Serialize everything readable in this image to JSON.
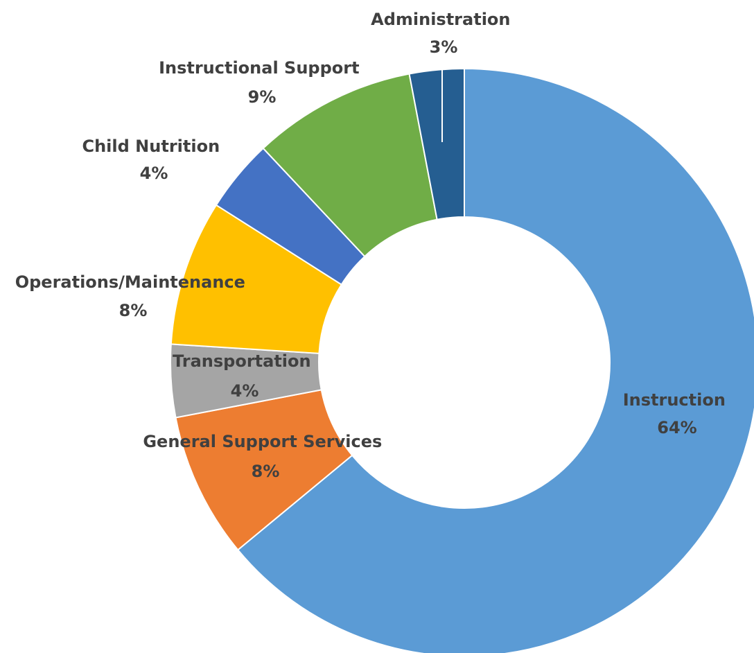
{
  "chart_data": {
    "type": "pie",
    "variant": "donut",
    "title": "",
    "legend": "none",
    "slices": [
      {
        "label": "Instruction",
        "value": 64,
        "display": "64%",
        "color": "#5B9BD5"
      },
      {
        "label": "General Support Services",
        "value": 8,
        "display": "8%",
        "color": "#ED7D31"
      },
      {
        "label": "Transportation",
        "value": 4,
        "display": "4%",
        "color": "#A5A5A5"
      },
      {
        "label": "Operations/Maintenance",
        "value": 8,
        "display": "8%",
        "color": "#FFC000"
      },
      {
        "label": "Child Nutrition",
        "value": 4,
        "display": "4%",
        "color": "#4472C4"
      },
      {
        "label": "Instructional Support",
        "value": 9,
        "display": "9%",
        "color": "#70AD47"
      },
      {
        "label": "Administration",
        "value": 3,
        "display": "3%",
        "color": "#255E91"
      }
    ]
  }
}
